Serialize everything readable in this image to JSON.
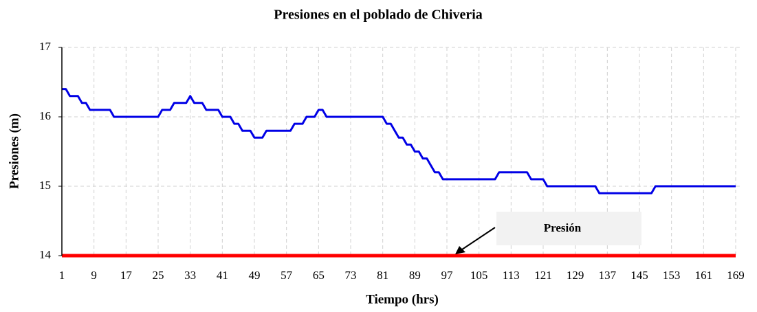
{
  "chart_data": {
    "type": "line",
    "title": "Presiones en el poblado de Chiveria",
    "xlabel": "Tiempo (hrs)",
    "ylabel": "Presiones (m)",
    "x": [
      1,
      2,
      3,
      4,
      5,
      6,
      7,
      8,
      9,
      10,
      11,
      12,
      13,
      14,
      15,
      16,
      17,
      18,
      19,
      20,
      21,
      22,
      23,
      24,
      25,
      26,
      27,
      28,
      29,
      30,
      31,
      32,
      33,
      34,
      35,
      36,
      37,
      38,
      39,
      40,
      41,
      42,
      43,
      44,
      45,
      46,
      47,
      48,
      49,
      50,
      51,
      52,
      53,
      54,
      55,
      56,
      57,
      58,
      59,
      60,
      61,
      62,
      63,
      64,
      65,
      66,
      67,
      68,
      69,
      70,
      71,
      72,
      73,
      74,
      75,
      76,
      77,
      78,
      79,
      80,
      81,
      82,
      83,
      84,
      85,
      86,
      87,
      88,
      89,
      90,
      91,
      92,
      93,
      94,
      95,
      96,
      97,
      98,
      99,
      100,
      101,
      102,
      103,
      104,
      105,
      106,
      107,
      108,
      109,
      110,
      111,
      112,
      113,
      114,
      115,
      116,
      117,
      118,
      119,
      120,
      121,
      122,
      123,
      124,
      125,
      126,
      127,
      128,
      129,
      130,
      131,
      132,
      133,
      134,
      135,
      136,
      137,
      138,
      139,
      140,
      141,
      142,
      143,
      144,
      145,
      146,
      147,
      148,
      149,
      150,
      151,
      152,
      153,
      154,
      155,
      156,
      157,
      158,
      159,
      160,
      161,
      162,
      163,
      164,
      165,
      166,
      167,
      168,
      169
    ],
    "series": [
      {
        "color": "#0000e6",
        "values": [
          16.4,
          16.4,
          16.3,
          16.3,
          16.3,
          16.2,
          16.2,
          16.1,
          16.1,
          16.1,
          16.1,
          16.1,
          16.1,
          16,
          16,
          16,
          16,
          16,
          16,
          16,
          16,
          16,
          16,
          16,
          16,
          16.1,
          16.1,
          16.1,
          16.2,
          16.2,
          16.2,
          16.2,
          16.3,
          16.2,
          16.2,
          16.2,
          16.1,
          16.1,
          16.1,
          16.1,
          16,
          16,
          16,
          15.9,
          15.9,
          15.8,
          15.8,
          15.8,
          15.7,
          15.7,
          15.7,
          15.8,
          15.8,
          15.8,
          15.8,
          15.8,
          15.8,
          15.8,
          15.9,
          15.9,
          15.9,
          16,
          16,
          16,
          16.1,
          16.1,
          16,
          16,
          16,
          16,
          16,
          16,
          16,
          16,
          16,
          16,
          16,
          16,
          16,
          16,
          16,
          15.9,
          15.9,
          15.8,
          15.7,
          15.7,
          15.6,
          15.6,
          15.5,
          15.5,
          15.4,
          15.4,
          15.3,
          15.2,
          15.2,
          15.1,
          15.1,
          15.1,
          15.1,
          15.1,
          15.1,
          15.1,
          15.1,
          15.1,
          15.1,
          15.1,
          15.1,
          15.1,
          15.1,
          15.2,
          15.2,
          15.2,
          15.2,
          15.2,
          15.2,
          15.2,
          15.2,
          15.1,
          15.1,
          15.1,
          15.1,
          15,
          15,
          15,
          15,
          15,
          15,
          15,
          15,
          15,
          15,
          15,
          15,
          15,
          14.9,
          14.9,
          14.9,
          14.9,
          14.9,
          14.9,
          14.9,
          14.9,
          14.9,
          14.9,
          14.9,
          14.9,
          14.9,
          14.9,
          15,
          15,
          15,
          15,
          15,
          15,
          15,
          15,
          15,
          15,
          15,
          15,
          15,
          15,
          15,
          15,
          15,
          15,
          15,
          15,
          15
        ]
      },
      {
        "color": "#ff0000",
        "values": [
          14,
          14,
          14,
          14,
          14,
          14,
          14,
          14,
          14,
          14,
          14,
          14,
          14,
          14,
          14,
          14,
          14,
          14,
          14,
          14,
          14,
          14,
          14,
          14,
          14,
          14,
          14,
          14,
          14,
          14,
          14,
          14,
          14,
          14,
          14,
          14,
          14,
          14,
          14,
          14,
          14,
          14,
          14,
          14,
          14,
          14,
          14,
          14,
          14,
          14,
          14,
          14,
          14,
          14,
          14,
          14,
          14,
          14,
          14,
          14,
          14,
          14,
          14,
          14,
          14,
          14,
          14,
          14,
          14,
          14,
          14,
          14,
          14,
          14,
          14,
          14,
          14,
          14,
          14,
          14,
          14,
          14,
          14,
          14,
          14,
          14,
          14,
          14,
          14,
          14,
          14,
          14,
          14,
          14,
          14,
          14,
          14,
          14,
          14,
          14,
          14,
          14,
          14,
          14,
          14,
          14,
          14,
          14,
          14,
          14,
          14,
          14,
          14,
          14,
          14,
          14,
          14,
          14,
          14,
          14,
          14,
          14,
          14,
          14,
          14,
          14,
          14,
          14,
          14,
          14,
          14,
          14,
          14,
          14,
          14,
          14,
          14,
          14,
          14,
          14,
          14,
          14,
          14,
          14,
          14,
          14,
          14,
          14,
          14,
          14,
          14,
          14,
          14,
          14,
          14,
          14,
          14,
          14,
          14,
          14,
          14,
          14,
          14,
          14,
          14,
          14,
          14,
          14,
          14
        ]
      }
    ],
    "annotation": "Presión",
    "xlim": [
      1,
      170
    ],
    "xticks": [
      1,
      9,
      17,
      25,
      33,
      41,
      49,
      57,
      65,
      73,
      81,
      89,
      97,
      105,
      113,
      121,
      129,
      137,
      145,
      153,
      161,
      169
    ],
    "ylim": [
      14,
      17
    ],
    "yticks": [
      14,
      15,
      16,
      17
    ],
    "grid": true
  }
}
